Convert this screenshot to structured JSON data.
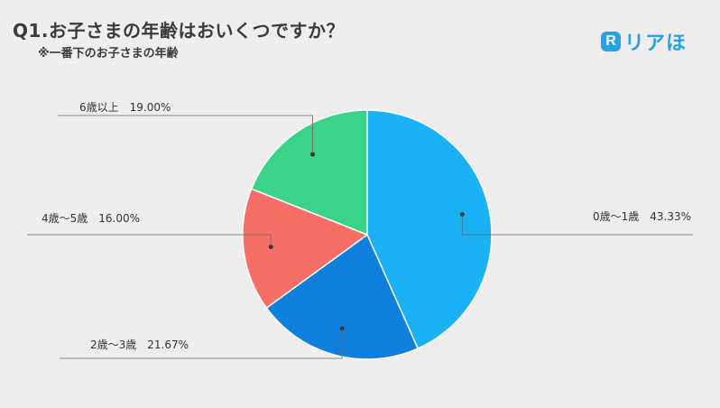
{
  "header": {
    "title": "Q1.お子さまの年齢はおいくつですか？",
    "subtitle": "※一番下のお子さまの年齢"
  },
  "logo": {
    "mark": "R",
    "text": "リアほ",
    "color": "#2aa1e3"
  },
  "chart_data": {
    "type": "pie",
    "title": "Q1.お子さまの年齢はおいくつですか？",
    "subtitle": "※一番下のお子さまの年齢",
    "slices": [
      {
        "label": "0歳～1歳",
        "value": 43.33,
        "display": "43.33%",
        "color": "#1ab2f5"
      },
      {
        "label": "2歳～3歳",
        "value": 21.67,
        "display": "21.67%",
        "color": "#0f7fdc"
      },
      {
        "label": "4歳～5歳",
        "value": 16.0,
        "display": "16.00%",
        "color": "#f76e67"
      },
      {
        "label": "6歳以上",
        "value": 19.0,
        "display": "19.00%",
        "color": "#3ad38a"
      }
    ],
    "start_angle": "12 o'clock",
    "direction": "clockwise",
    "label_style": "leader-lines"
  }
}
